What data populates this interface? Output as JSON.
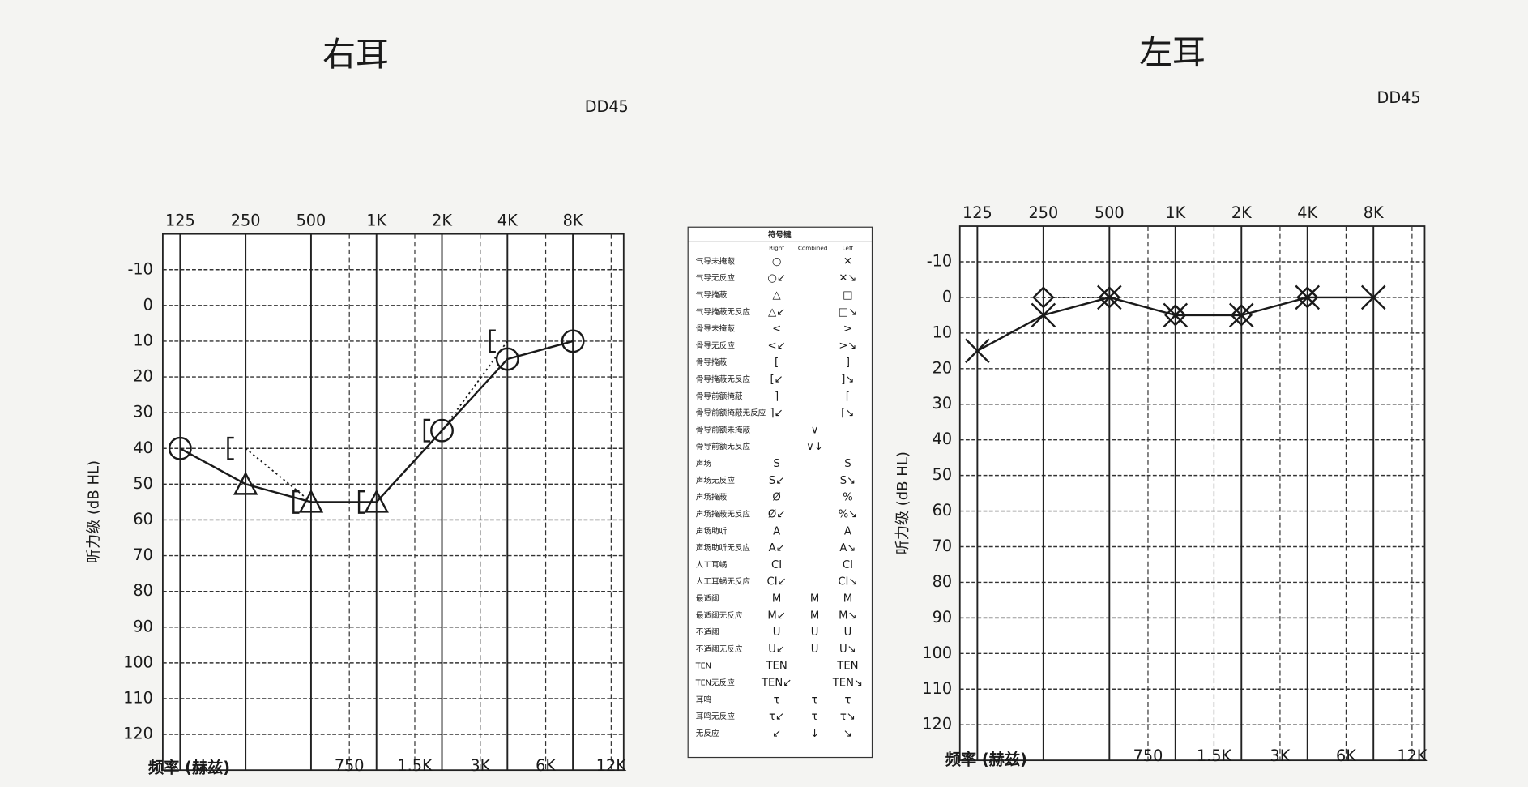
{
  "chart_data": [
    {
      "type": "line",
      "title": "右耳",
      "annotation": "DD45",
      "ylabel": "听力级 (dB HL)",
      "xlabel": "频率 (赫兹)",
      "log_x": true,
      "grid": true,
      "xlim": [
        104,
        13700
      ],
      "ylim": [
        -20,
        130
      ],
      "xticks": [
        125,
        250,
        500,
        {
          "value": 1000,
          "label": "1K"
        },
        {
          "value": 2000,
          "label": "2K"
        },
        {
          "value": 4000,
          "label": "4K"
        },
        {
          "value": 8000,
          "label": "8K"
        }
      ],
      "xticks_bottom": [
        750,
        {
          "value": 1500,
          "label": "1.5K"
        },
        {
          "value": 3000,
          "label": "3K"
        },
        {
          "value": 6000,
          "label": "6K"
        },
        {
          "value": 12000,
          "label": "12K"
        }
      ],
      "yticks": [
        -10,
        0,
        10,
        20,
        30,
        40,
        50,
        60,
        70,
        80,
        90,
        100,
        110,
        120
      ],
      "x": [
        125,
        250,
        500,
        1000,
        2000,
        4000,
        8000
      ],
      "series": [
        {
          "color": "#1a1a1a",
          "line": "solid",
          "values": [
            40,
            50,
            55,
            55,
            35,
            15,
            10
          ],
          "markers": [
            "circle",
            "triangle",
            "triangle",
            "triangle",
            "circle",
            "circle",
            "circle"
          ]
        },
        {
          "color": "#1a1a1a",
          "line": "dotted",
          "values": [
            null,
            40,
            55,
            55,
            35,
            10,
            null
          ],
          "markers": [
            null,
            "bracket",
            "bracket",
            "bracket",
            "bracket",
            "bracket",
            null
          ]
        }
      ]
    },
    {
      "type": "line",
      "title": "左耳",
      "annotation": "DD45",
      "ylabel": "听力级 (dB HL)",
      "xlabel": "频率 (赫兹)",
      "log_x": true,
      "grid": true,
      "xlim": [
        104,
        13700
      ],
      "ylim": [
        -20,
        130
      ],
      "xticks": [
        125,
        250,
        500,
        {
          "value": 1000,
          "label": "1K"
        },
        {
          "value": 2000,
          "label": "2K"
        },
        {
          "value": 4000,
          "label": "4K"
        },
        {
          "value": 8000,
          "label": "8K"
        }
      ],
      "xticks_bottom": [
        750,
        {
          "value": 1500,
          "label": "1.5K"
        },
        {
          "value": 3000,
          "label": "3K"
        },
        {
          "value": 6000,
          "label": "6K"
        },
        {
          "value": 12000,
          "label": "12K"
        }
      ],
      "yticks": [
        -10,
        0,
        10,
        20,
        30,
        40,
        50,
        60,
        70,
        80,
        90,
        100,
        110,
        120
      ],
      "x": [
        125,
        250,
        500,
        1000,
        2000,
        4000,
        8000
      ],
      "series": [
        {
          "color": "#1a1a1a",
          "line": "solid",
          "values": [
            15,
            5,
            0,
            5,
            5,
            0,
            0
          ],
          "markers": [
            "x",
            "x",
            "x",
            "x",
            "x",
            "x",
            "x"
          ]
        },
        {
          "color": "#1a1a1a",
          "line": "dotted",
          "values": [
            null,
            0,
            0,
            5,
            5,
            0,
            null
          ],
          "markers": [
            null,
            "diamond",
            "diamond",
            "diamond",
            "diamond",
            "diamond",
            null
          ]
        }
      ]
    }
  ],
  "symbol_key": {
    "title": "符号键",
    "headers": [
      "Right",
      "Combined",
      "Left"
    ],
    "rows": [
      {
        "label": "气导未掩蔽",
        "right": "○",
        "combined": null,
        "left": "✕"
      },
      {
        "label": "气导无反应",
        "right": "○↙",
        "combined": null,
        "left": "✕↘"
      },
      {
        "label": "气导掩蔽",
        "right": "△",
        "combined": null,
        "left": "□"
      },
      {
        "label": "气导掩蔽无反应",
        "right": "△↙",
        "combined": null,
        "left": "□↘"
      },
      {
        "label": "骨导未掩蔽",
        "right": "<",
        "combined": null,
        "left": ">"
      },
      {
        "label": "骨导无反应",
        "right": "<↙",
        "combined": null,
        "left": ">↘"
      },
      {
        "label": "骨导掩蔽",
        "right": "[",
        "combined": null,
        "left": "]"
      },
      {
        "label": "骨导掩蔽无反应",
        "right": "[↙",
        "combined": null,
        "left": "]↘"
      },
      {
        "label": "骨导前额掩蔽",
        "right": "⌉",
        "combined": null,
        "left": "⌈"
      },
      {
        "label": "骨导前额掩蔽无反应",
        "right": "⌉↙",
        "combined": null,
        "left": "⌈↘"
      },
      {
        "label": "骨导前额未掩蔽",
        "right": null,
        "combined": "∨",
        "left": null
      },
      {
        "label": "骨导前额无反应",
        "right": null,
        "combined": "∨↓",
        "left": null
      },
      {
        "label": "声场",
        "right": "S",
        "combined": null,
        "left": "S"
      },
      {
        "label": "声场无反应",
        "right": "S↙",
        "combined": null,
        "left": "S↘"
      },
      {
        "label": "声场掩蔽",
        "right": "Ø",
        "combined": null,
        "left": "%"
      },
      {
        "label": "声场掩蔽无反应",
        "right": "Ø↙",
        "combined": null,
        "left": "%↘"
      },
      {
        "label": "声场助听",
        "right": "A",
        "combined": null,
        "left": "A"
      },
      {
        "label": "声场助听无反应",
        "right": "A↙",
        "combined": null,
        "left": "A↘"
      },
      {
        "label": "人工耳蜗",
        "right": "CI",
        "combined": null,
        "left": "CI"
      },
      {
        "label": "人工耳蜗无反应",
        "right": "CI↙",
        "combined": null,
        "left": "CI↘"
      },
      {
        "label": "最适阈",
        "right": "M",
        "combined": "M",
        "left": "M"
      },
      {
        "label": "最适阈无反应",
        "right": "M↙",
        "combined": "M",
        "left": "M↘"
      },
      {
        "label": "不适阈",
        "right": "U",
        "combined": "U",
        "left": "U"
      },
      {
        "label": "不适阈无反应",
        "right": "U↙",
        "combined": "U",
        "left": "U↘"
      },
      {
        "label": "TEN",
        "right": "TEN",
        "combined": null,
        "left": "TEN"
      },
      {
        "label": "TEN无反应",
        "right": "TEN↙",
        "combined": null,
        "left": "TEN↘"
      },
      {
        "label": "耳鸣",
        "right": "τ",
        "combined": "τ",
        "left": "τ"
      },
      {
        "label": "耳鸣无反应",
        "right": "τ↙",
        "combined": "τ",
        "left": "τ↘"
      },
      {
        "label": "无反应",
        "right": "↙",
        "combined": "↓",
        "left": "↘"
      }
    ]
  }
}
